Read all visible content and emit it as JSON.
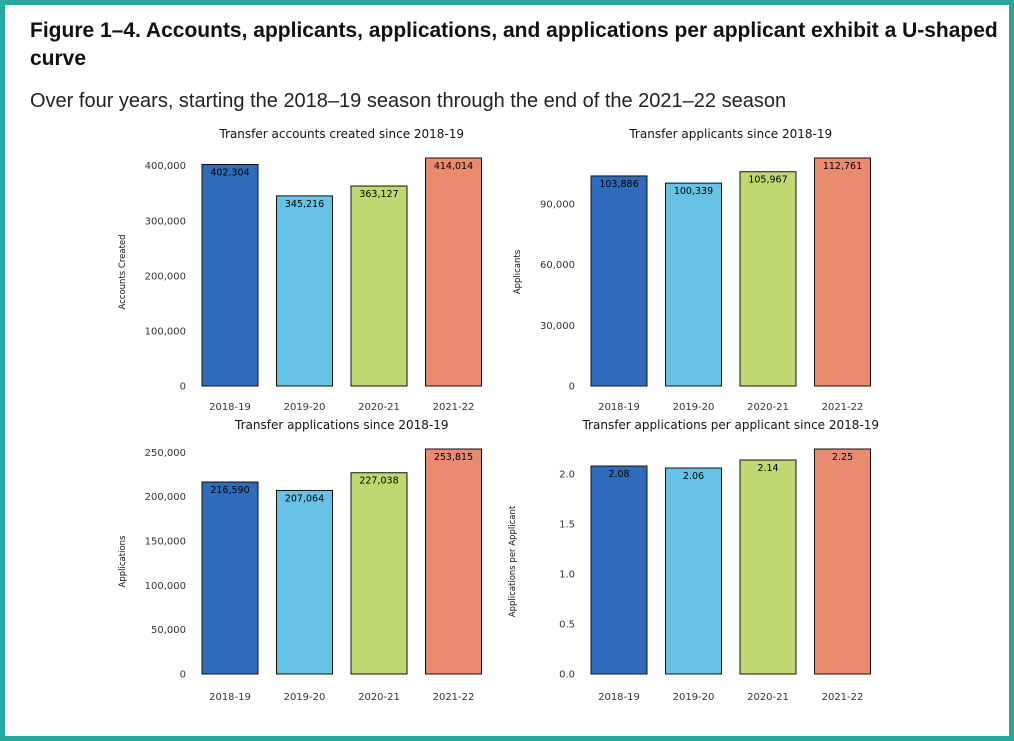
{
  "figure": {
    "title": "Figure 1–4. Accounts, applicants, applications, and applications per applicant exhibit a U-shaped curve",
    "subtitle": "Over four years, starting the 2018–19 season through the end of the 2021–22 season"
  },
  "colors": {
    "frame": "#2aa79b",
    "bars": [
      "#2e6bbb",
      "#67c2e6",
      "#bfd872",
      "#e98b71"
    ]
  },
  "chart_data": [
    {
      "type": "bar",
      "title": "Transfer accounts created since 2018-19",
      "xlabel": "",
      "ylabel": "Accounts Created",
      "categories": [
        "2018-19",
        "2019-20",
        "2020-21",
        "2021-22"
      ],
      "values": [
        402304,
        345216,
        363127,
        414014
      ],
      "labels": [
        "402,304",
        "345,216",
        "363,127",
        "414,014"
      ],
      "yticks": [
        0,
        100000,
        200000,
        300000,
        400000
      ],
      "ytick_labels": [
        "0",
        "100,000",
        "200,000",
        "300,000",
        "400,000"
      ],
      "ylim": [
        0,
        414014
      ]
    },
    {
      "type": "bar",
      "title": "Transfer applicants since 2018-19",
      "xlabel": "",
      "ylabel": "Applicants",
      "categories": [
        "2018-19",
        "2019-20",
        "2020-21",
        "2021-22"
      ],
      "values": [
        103886,
        100339,
        105967,
        112761
      ],
      "labels": [
        "103,886",
        "100,339",
        "105,967",
        "112,761"
      ],
      "yticks": [
        0,
        30000,
        60000,
        90000
      ],
      "ytick_labels": [
        "0",
        "30,000",
        "60,000",
        "90,000"
      ],
      "ylim": [
        0,
        112761
      ]
    },
    {
      "type": "bar",
      "title": "Transfer applications since 2018-19",
      "xlabel": "",
      "ylabel": "Applications",
      "categories": [
        "2018-19",
        "2019-20",
        "2020-21",
        "2021-22"
      ],
      "values": [
        216590,
        207064,
        227038,
        253815
      ],
      "labels": [
        "216,590",
        "207,064",
        "227,038",
        "253,815"
      ],
      "yticks": [
        0,
        50000,
        100000,
        150000,
        200000,
        250000
      ],
      "ytick_labels": [
        "0",
        "50,000",
        "100,000",
        "150,000",
        "200,000",
        "250,000"
      ],
      "ylim": [
        0,
        253815
      ]
    },
    {
      "type": "bar",
      "title": "Transfer applications per applicant since 2018-19",
      "xlabel": "",
      "ylabel": "Applications per Applicant",
      "categories": [
        "2018-19",
        "2019-20",
        "2020-21",
        "2021-22"
      ],
      "values": [
        2.08,
        2.06,
        2.14,
        2.25
      ],
      "labels": [
        "2.08",
        "2.06",
        "2.14",
        "2.25"
      ],
      "yticks": [
        0.0,
        0.5,
        1.0,
        1.5,
        2.0
      ],
      "ytick_labels": [
        "0.0",
        "0.5",
        "1.0",
        "1.5",
        "2.0"
      ],
      "ylim": [
        0,
        2.25
      ]
    }
  ]
}
